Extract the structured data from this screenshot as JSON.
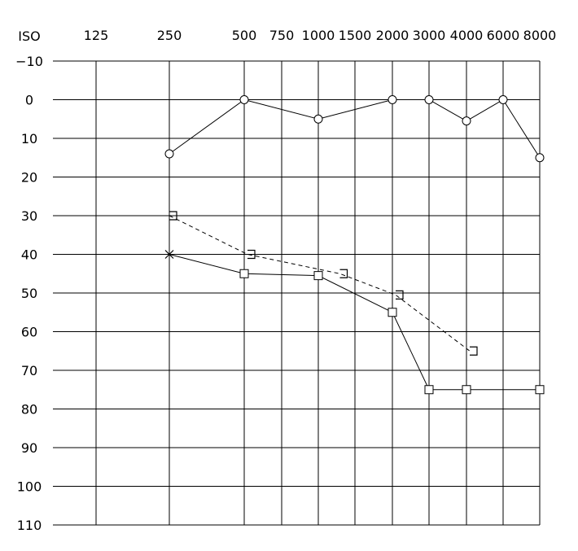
{
  "chart_data": {
    "type": "line",
    "title": "",
    "corner_label": "ISO",
    "x_tick_labels": [
      "125",
      "250",
      "500",
      "750",
      "1000",
      "1500",
      "2000",
      "3000",
      "4000",
      "6000",
      "8000"
    ],
    "y_tick_labels": [
      "−10",
      "0",
      "10",
      "20",
      "30",
      "40",
      "50",
      "60",
      "70",
      "80",
      "90",
      "100",
      "110"
    ],
    "ylim": [
      -10,
      110
    ],
    "y_inverted": true,
    "grid": true,
    "series": [
      {
        "marker": "circle",
        "line_style": "solid",
        "points": [
          {
            "x": "250",
            "y": 14
          },
          {
            "x": "500",
            "y": 0
          },
          {
            "x": "1000",
            "y": 5
          },
          {
            "x": "2000",
            "y": 0
          },
          {
            "x": "3000",
            "y": 0
          },
          {
            "x": "4000",
            "y": 5.5
          },
          {
            "x": "6000",
            "y": 0
          },
          {
            "x": "8000",
            "y": 15
          }
        ]
      },
      {
        "marker": "bracket-right",
        "line_style": "dashed",
        "points": [
          {
            "x": "250",
            "y": 30
          },
          {
            "x": "500",
            "y": 40
          },
          {
            "x": "1500",
            "y": 45
          },
          {
            "x": "2000",
            "y": 50.5
          },
          {
            "x": "4000",
            "y": 65
          }
        ]
      },
      {
        "marker": "cross-then-square",
        "line_style": "solid",
        "points": [
          {
            "x": "250",
            "y": 40,
            "marker": "cross"
          },
          {
            "x": "500",
            "y": 45,
            "marker": "square"
          },
          {
            "x": "1000",
            "y": 45.5,
            "marker": "square"
          },
          {
            "x": "2000",
            "y": 55,
            "marker": "square"
          },
          {
            "x": "3000",
            "y": 75,
            "marker": "square"
          },
          {
            "x": "4000",
            "y": 75,
            "marker": "square"
          },
          {
            "x": "8000",
            "y": 75,
            "marker": "square"
          }
        ]
      }
    ]
  }
}
